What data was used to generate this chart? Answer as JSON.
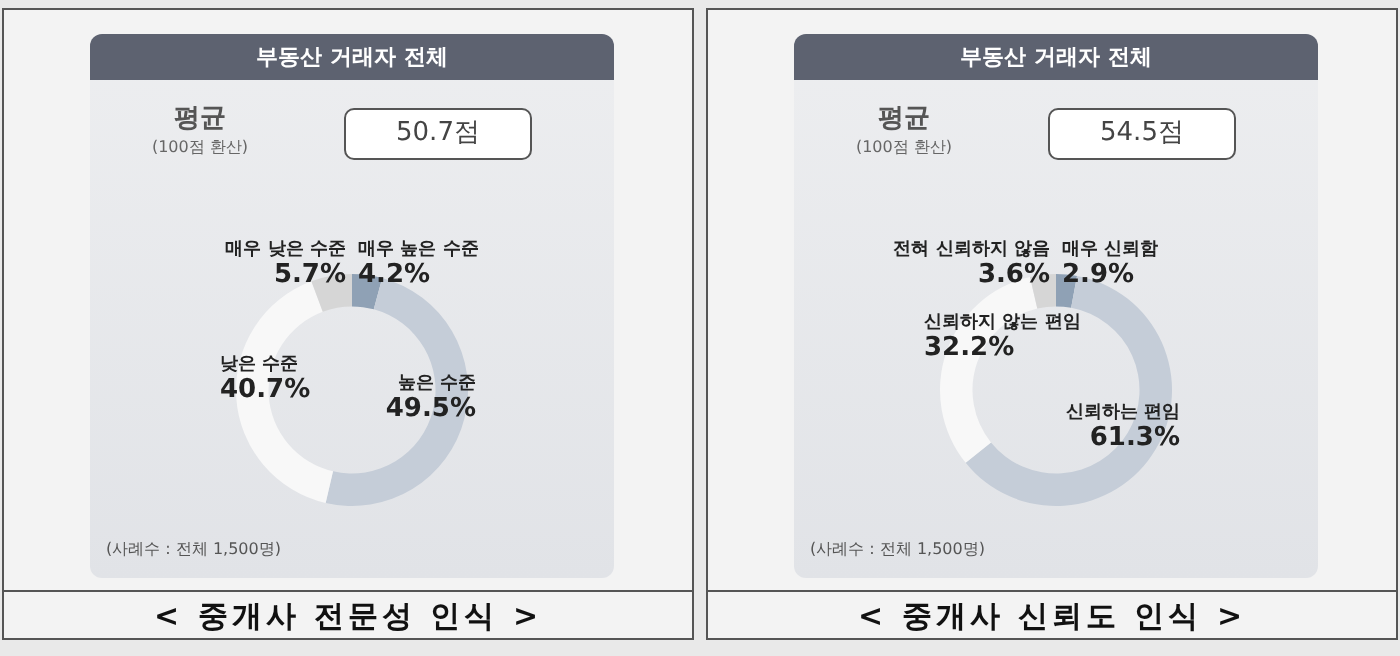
{
  "chart_data": [
    {
      "type": "donut",
      "title": "부동산 거래자 전체",
      "categories": [
        "매우 높은 수준",
        "높은 수준",
        "낮은 수준",
        "매우 낮은 수준"
      ],
      "values": [
        4.2,
        49.5,
        40.7,
        5.7
      ],
      "value_labels": [
        "4.2%",
        "49.5%",
        "40.7%",
        "5.7%"
      ],
      "colors": [
        "#8fa1b5",
        "#c5cdd8",
        "#f8f8f8",
        "#d6d6d6"
      ],
      "legend": false,
      "annotations": [
        "평균",
        "(100점 환산)",
        "50.7점",
        "(사례수 : 전체 1,500명)",
        "< 중개사 전문성 인식 >"
      ]
    },
    {
      "type": "donut",
      "title": "부동산 거래자 전체",
      "categories": [
        "매우 신뢰함",
        "신뢰하는 편임",
        "신뢰하지 않는 편임",
        "전혀 신뢰하지 않음"
      ],
      "values": [
        2.9,
        61.3,
        32.2,
        3.6
      ],
      "value_labels": [
        "2.9%",
        "61.3%",
        "32.2%",
        "3.6%"
      ],
      "colors": [
        "#8fa1b5",
        "#c5cdd8",
        "#f8f8f8",
        "#d6d6d6"
      ],
      "legend": false,
      "annotations": [
        "평균",
        "(100점 환산)",
        "54.5점",
        "(사례수 : 전체 1,500명)",
        "< 중개사 신뢰도 인식 >"
      ]
    }
  ]
}
